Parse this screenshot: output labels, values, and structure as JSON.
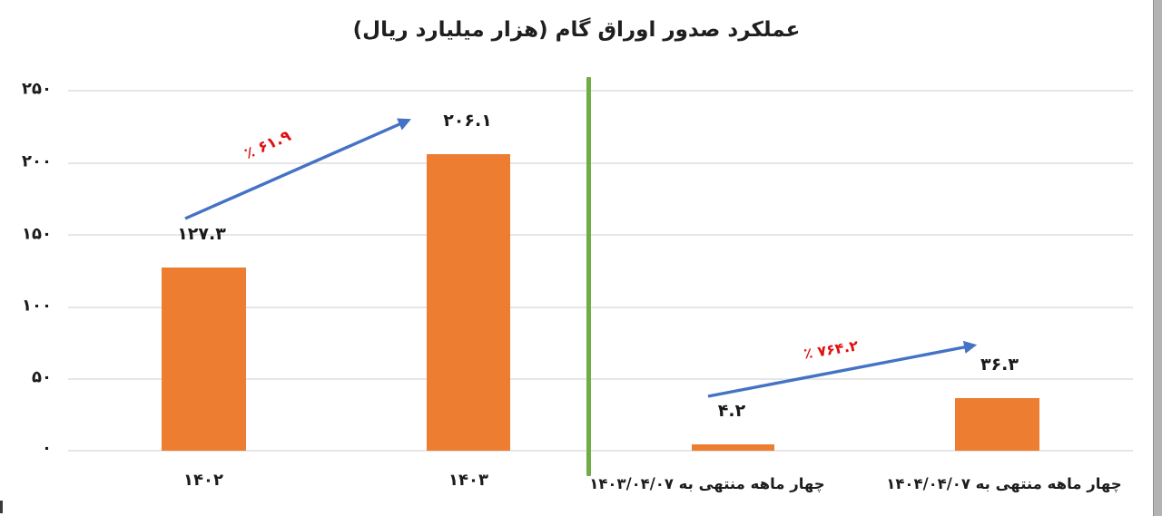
{
  "title": "عملکرد صدور اوراق گام (هزار میلیارد ریال)",
  "colors": {
    "bar": "#ED7D31",
    "arrow": "#4472C4",
    "growth_label": "#E01010",
    "separator_line": "#70AD47",
    "text": "#1c1c1c",
    "gridline": "#e6e6e6"
  },
  "chart_data": {
    "type": "bar",
    "title": "عملکرد صدور اوراق گام (هزار میلیارد ریال)",
    "unit": "هزار میلیارد ریال",
    "categories": [
      "۱۴۰۲",
      "۱۴۰۳",
      "چهار ماهه منتهی به ۱۴۰۳/۰۴/۰۷",
      "چهار ماهه منتهی به ۱۴۰۴/۰۴/۰۷"
    ],
    "values": [
      127.3,
      206.1,
      4.2,
      36.3
    ],
    "value_labels_fa": [
      "۱۲۷.۳",
      "۲۰۶.۱",
      "۴.۲",
      "۳۶.۳"
    ],
    "ylim": [
      0,
      250
    ],
    "y_ticks": [
      250,
      200,
      150,
      100,
      50,
      0
    ],
    "y_tick_labels_fa": [
      "۲۵۰",
      "۲۰۰",
      "۱۵۰",
      "۱۰۰",
      "۵۰",
      "۰"
    ],
    "grid": true,
    "legend": "none",
    "bar_color": "#ED7D31",
    "annotations": [
      {
        "type": "growth-arrow",
        "from_category": "۱۴۰۲",
        "to_category": "۱۴۰۳",
        "growth_pct": 61.9,
        "label_fa": "٪ ۶۱.۹",
        "arrow_color": "#4472C4",
        "label_color": "#E01010"
      },
      {
        "type": "growth-arrow",
        "from_category": "چهار ماهه منتهی به ۱۴۰۳/۰۴/۰۷",
        "to_category": "چهار ماهه منتهی به ۱۴۰۴/۰۴/۰۷",
        "growth_pct": 764.2,
        "label_fa": "٪ ۷۶۴.۲",
        "arrow_color": "#4472C4",
        "label_color": "#E01010"
      }
    ],
    "separator": {
      "type": "vertical-line",
      "color": "#70AD47",
      "between": [
        "۱۴۰۳",
        "چهار ماهه منتهی به ۱۴۰۳/۰۴/۰۷"
      ]
    }
  }
}
